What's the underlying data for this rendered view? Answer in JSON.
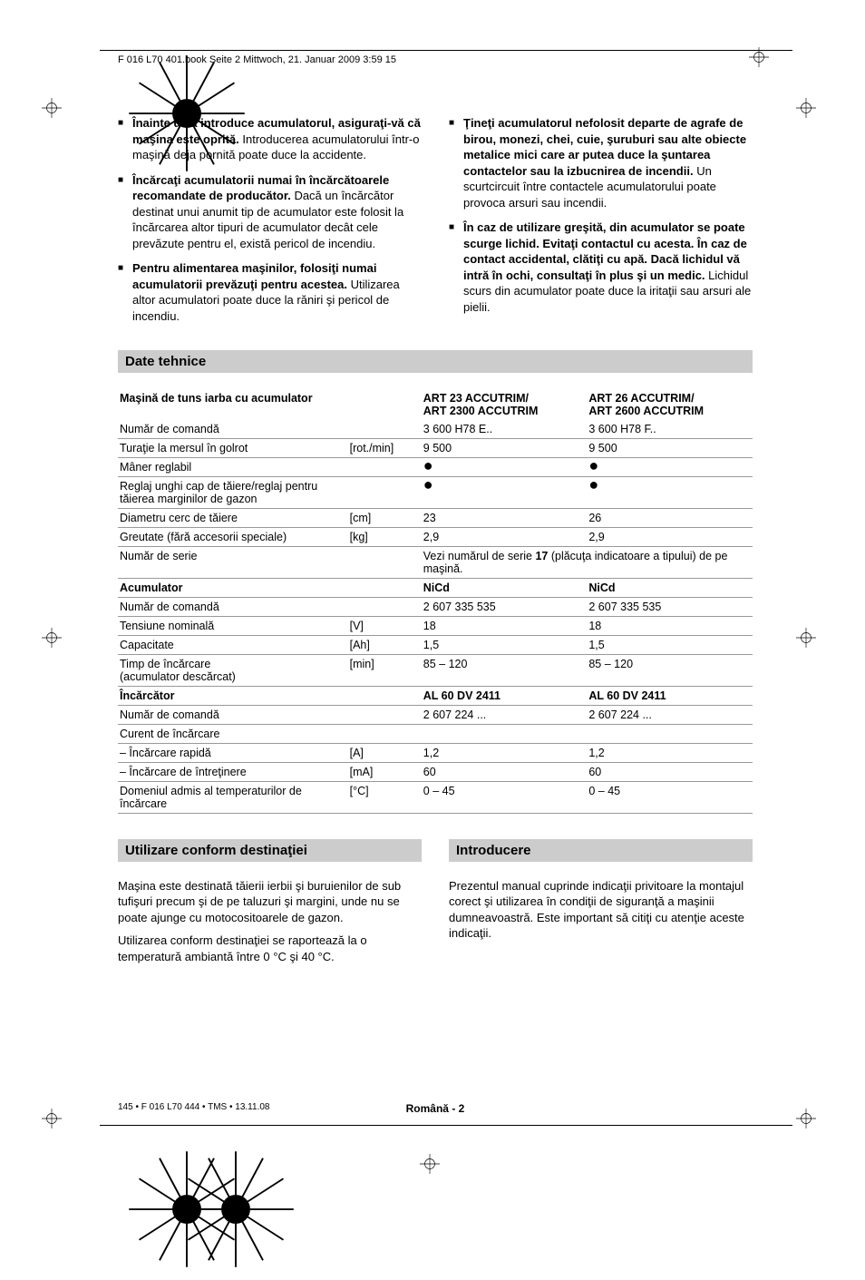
{
  "meta": {
    "header": "F 016 L70 401.book  Seite 2  Mittwoch, 21. Januar 2009  3:59 15"
  },
  "bullets_left": [
    {
      "bold": "Înainte de a introduce acumulatorul, asiguraţi-vă că maşina este oprită.",
      "rest": " Introducerea acumulatorului într-o maşină deja pornită poate duce la accidente."
    },
    {
      "bold": "Încărcaţi acumulatorii numai în încărcătoarele recomandate de producător.",
      "rest": " Dacă un încărcător destinat unui anumit tip de acumulator este folosit la încărcarea altor tipuri de acumulator decât cele prevăzute pentru el, există pericol de incendiu."
    },
    {
      "bold": "Pentru alimentarea maşinilor, folosiţi numai acumulatorii prevăzuţi pentru acestea.",
      "rest": " Utilizarea altor acumulatori poate duce la răniri şi pericol de incendiu."
    }
  ],
  "bullets_right": [
    {
      "bold": "Ţineţi acumulatorul nefolosit departe de agrafe de birou, monezi, chei, cuie, şuruburi sau alte obiecte metalice mici care ar putea duce la şuntarea contactelor sau la izbucnirea de incendii.",
      "rest": " Un scurtcircuit între contactele acumulatorului poate provoca arsuri sau incendii."
    },
    {
      "bold": "În caz de utilizare greşită, din acumulator se poate scurge lichid. Evitaţi contactul cu acesta. În caz de contact accidental, clătiţi cu apă. Dacă lichidul vă intră în ochi, consultaţi în plus şi un medic.",
      "rest": " Lichidul scurs din acumulator poate duce la iritaţii sau arsuri ale pielii."
    }
  ],
  "sections": {
    "tech": "Date tehnice",
    "usage": "Utilizare conform destinaţiei",
    "intro": "Introducere"
  },
  "table": {
    "h1": "Maşină de tuns iarba cu acumulator",
    "h2": "ART 23 ACCUTRIM/\nART 2300 ACCUTRIM",
    "h3": "ART 26 ACCUTRIM/\nART 2600 ACCUTRIM",
    "rows": [
      {
        "label": "Număr de comandă",
        "unit": "",
        "v1": "3 600 H78 E..",
        "v2": "3 600 H78 F.."
      },
      {
        "label": "Turaţie la mersul în golrot",
        "unit": "[rot./min]",
        "v1": "9 500",
        "v2": "9 500"
      },
      {
        "label": "Mâner reglabil",
        "unit": "",
        "v1": "●",
        "v2": "●",
        "dot": true
      },
      {
        "label": "Reglaj unghi cap de tăiere/reglaj pentru tăierea marginilor de gazon",
        "unit": "",
        "v1": "●",
        "v2": "●",
        "dot": true
      },
      {
        "label": "Diametru cerc de tăiere",
        "unit": "[cm]",
        "v1": "23",
        "v2": "26"
      },
      {
        "label": "Greutate (fără accesorii speciale)",
        "unit": "[kg]",
        "v1": "2,9",
        "v2": "2,9"
      },
      {
        "label": "Număr de serie",
        "unit": "",
        "span": "Vezi numărul de serie 17 (plăcuţa indicatoare a tipului) de pe maşină.",
        "span_bold_num": "17"
      },
      {
        "label": "Acumulator",
        "bold": true,
        "unit": "",
        "v1": "NiCd",
        "v2": "NiCd",
        "vbold": true
      },
      {
        "label": "Număr de comandă",
        "unit": "",
        "v1": "2 607 335 535",
        "v2": "2 607 335 535"
      },
      {
        "label": "Tensiune nominală",
        "unit": "[V]",
        "v1": "18",
        "v2": "18"
      },
      {
        "label": "Capacitate",
        "unit": "[Ah]",
        "v1": "1,5",
        "v2": "1,5"
      },
      {
        "label": "Timp de încărcare\n(acumulator descărcat)",
        "unit": "[min]",
        "v1": "85 – 120",
        "v2": "85 – 120"
      },
      {
        "label": "Încărcător",
        "bold": true,
        "unit": "",
        "v1": "AL 60 DV 2411",
        "v2": "AL 60 DV 2411",
        "vbold": true
      },
      {
        "label": "Număr de comandă",
        "unit": "",
        "v1": "2 607 224 ...",
        "v2": "2 607 224 ..."
      },
      {
        "label": "Curent de încărcare",
        "unit": "",
        "v1": "",
        "v2": ""
      },
      {
        "label": "–  Încărcare rapidă",
        "unit": "[A]",
        "v1": "1,2",
        "v2": "1,2"
      },
      {
        "label": "–  Încărcare de întreţinere",
        "unit": "[mA]",
        "v1": "60",
        "v2": "60"
      },
      {
        "label": "Domeniul admis al temperaturilor de încărcare",
        "unit": "[°C]",
        "v1": "0 – 45",
        "v2": "0 – 45"
      }
    ]
  },
  "usage_text": {
    "p1": "Maşina este destinată tăierii ierbii şi buruienilor de sub tufişuri precum şi de pe taluzuri şi margini, unde nu se poate ajunge cu motocositoarele de gazon.",
    "p2": "Utilizarea conform destinaţiei se raportează la o temperatură ambiantă între 0 °C şi 40 °C."
  },
  "intro_text": {
    "p1": "Prezentul manual cuprinde indicaţii privitoare la montajul corect şi utilizarea în condiţii de siguranţă a maşinii dumneavoastră. Este important să citiţi cu atenţie aceste indicaţii."
  },
  "footer": {
    "left": "145 • F 016 L70 444 • TMS • 13.11.08",
    "center": "Română - 2"
  }
}
